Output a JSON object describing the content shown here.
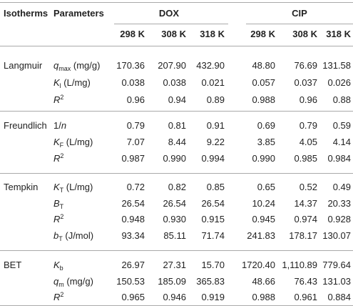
{
  "header": {
    "columns": [
      "Isotherms",
      "Parameters"
    ],
    "groups": [
      {
        "name": "DOX",
        "temps": [
          "298 K",
          "308 K",
          "318 K"
        ]
      },
      {
        "name": "CIP",
        "temps": [
          "298 K",
          "308 K",
          "318 K"
        ]
      }
    ]
  },
  "table": {
    "groups": [
      {
        "name": "Langmuir",
        "rows": [
          {
            "param": {
              "sym": "q",
              "sub": "max",
              "unit": "(mg/g)"
            },
            "values": [
              "170.36",
              "207.90",
              "432.90",
              "48.80",
              "76.69",
              "131.58"
            ]
          },
          {
            "param": {
              "sym": "K",
              "sub": "l",
              "unit": "(L/mg)"
            },
            "values": [
              "0.038",
              "0.038",
              "0.021",
              "0.057",
              "0.037",
              "0.026"
            ]
          },
          {
            "param": {
              "sym": "R",
              "sup": "2"
            },
            "values": [
              "0.96",
              "0.94",
              "0.89",
              "0.988",
              "0.96",
              "0.88"
            ]
          }
        ]
      },
      {
        "name": "Freundlich",
        "rows": [
          {
            "param": {
              "pre": "1/",
              "sym": "n"
            },
            "values": [
              "0.79",
              "0.81",
              "0.91",
              "0.69",
              "0.79",
              "0.59"
            ]
          },
          {
            "param": {
              "sym": "K",
              "sub": "F",
              "unit": "(L/mg)"
            },
            "values": [
              "7.07",
              "8.44",
              "9.22",
              "3.85",
              "4.05",
              "4.14"
            ]
          },
          {
            "param": {
              "sym": "R",
              "sup": "2"
            },
            "values": [
              "0.987",
              "0.990",
              "0.994",
              "0.990",
              "0.985",
              "0.984"
            ]
          }
        ]
      },
      {
        "name": "Tempkin",
        "rows": [
          {
            "param": {
              "sym": "K",
              "sub": "T",
              "unit": "(L/mg)"
            },
            "values": [
              "0.72",
              "0.82",
              "0.85",
              "0.65",
              "0.52",
              "0.49"
            ]
          },
          {
            "param": {
              "sym": "B",
              "sub": "T"
            },
            "values": [
              "26.54",
              "26.54",
              "26.54",
              "10.24",
              "14.37",
              "20.33"
            ]
          },
          {
            "param": {
              "sym": "R",
              "sup": "2"
            },
            "values": [
              "0.948",
              "0.930",
              "0.915",
              "0.945",
              "0.974",
              "0.928"
            ]
          },
          {
            "param": {
              "sym": "b",
              "sub": "T",
              "unit": "(J/mol)"
            },
            "values": [
              "93.34",
              "85.11",
              "71.74",
              "241.83",
              "178.17",
              "130.07"
            ]
          }
        ]
      },
      {
        "name": "BET",
        "rows": [
          {
            "param": {
              "sym": "K",
              "sub": "b"
            },
            "values": [
              "26.97",
              "27.31",
              "15.70",
              "1720.40",
              "1,110.89",
              "779.64"
            ]
          },
          {
            "param": {
              "sym": "q",
              "sub": "m",
              "unit": "(mg/g)"
            },
            "values": [
              "150.53",
              "185.09",
              "365.83",
              "48.66",
              "76.43",
              "131.03"
            ]
          },
          {
            "param": {
              "sym": "R",
              "sup": "2"
            },
            "values": [
              "0.965",
              "0.946",
              "0.919",
              "0.988",
              "0.961",
              "0.884"
            ]
          }
        ]
      }
    ]
  }
}
